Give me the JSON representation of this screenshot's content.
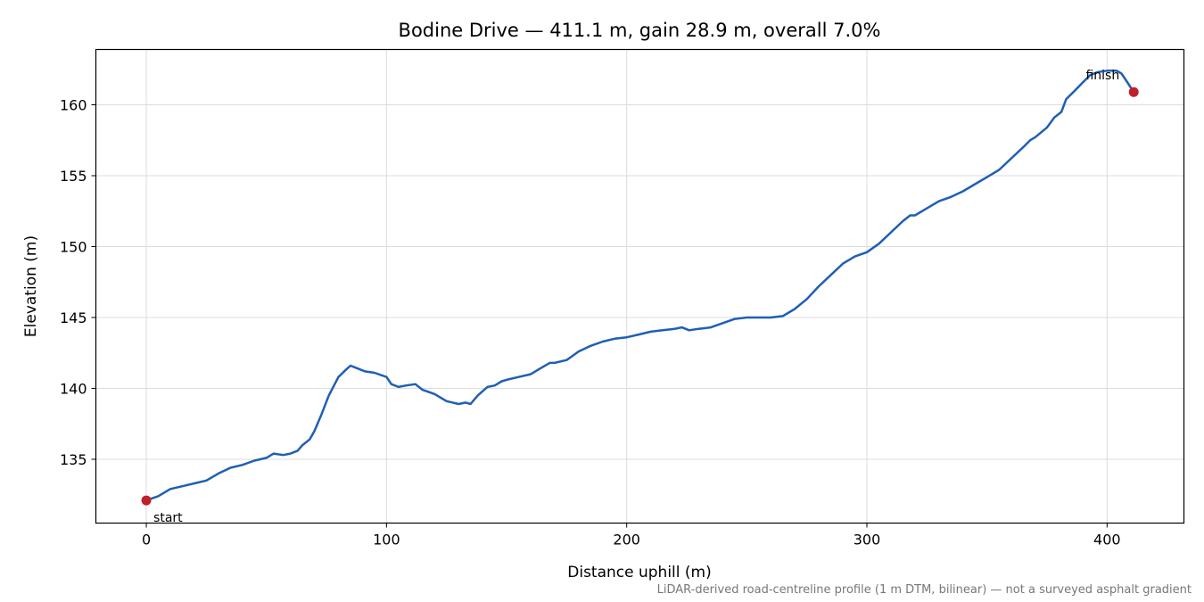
{
  "chart_data": {
    "type": "line",
    "title": "Bodine Drive — 411.1 m, gain 28.9 m, overall 7.0%",
    "xlabel": "Distance uphill (m)",
    "ylabel": "Elevation (m)",
    "xlim": [
      -21,
      432
    ],
    "ylim": [
      130.5,
      163.9
    ],
    "xticks": [
      0,
      100,
      200,
      300,
      400
    ],
    "yticks": [
      135,
      140,
      145,
      150,
      155,
      160
    ],
    "grid": true,
    "footnote": "LiDAR-derived road-centreline profile (1 m DTM, bilinear) — not a surveyed asphalt gradient",
    "series": [
      {
        "color": "#1f5fb4",
        "x": [
          0,
          5,
          10,
          15,
          20,
          25,
          30,
          35,
          40,
          45,
          50,
          53,
          57,
          60,
          63,
          65,
          68,
          70,
          73,
          76,
          80,
          83,
          85,
          88,
          91,
          95,
          100,
          102,
          105,
          108,
          112,
          115,
          120,
          125,
          130,
          133,
          135,
          138,
          142,
          145,
          148,
          150,
          155,
          160,
          165,
          168,
          170,
          175,
          180,
          185,
          190,
          195,
          200,
          205,
          210,
          215,
          220,
          223,
          226,
          230,
          235,
          240,
          245,
          250,
          255,
          260,
          265,
          270,
          275,
          280,
          285,
          290,
          295,
          300,
          305,
          310,
          315,
          318,
          320,
          325,
          330,
          335,
          340,
          345,
          350,
          355,
          360,
          365,
          368,
          370,
          375,
          378,
          381,
          383,
          386,
          390,
          393,
          396,
          400,
          404,
          406,
          408,
          411.1
        ],
        "y": [
          132.1,
          132.4,
          132.9,
          133.1,
          133.3,
          133.5,
          134.0,
          134.4,
          134.6,
          134.9,
          135.1,
          135.4,
          135.3,
          135.4,
          135.6,
          136.0,
          136.4,
          137.0,
          138.2,
          139.5,
          140.8,
          141.3,
          141.6,
          141.4,
          141.2,
          141.1,
          140.8,
          140.3,
          140.1,
          140.2,
          140.3,
          139.9,
          139.6,
          139.1,
          138.9,
          139.0,
          138.9,
          139.5,
          140.1,
          140.2,
          140.5,
          140.6,
          140.8,
          141.0,
          141.5,
          141.8,
          141.8,
          142.0,
          142.6,
          143.0,
          143.3,
          143.5,
          143.6,
          143.8,
          144.0,
          144.1,
          144.2,
          144.3,
          144.1,
          144.2,
          144.3,
          144.6,
          144.9,
          145.0,
          145.0,
          145.0,
          145.1,
          145.6,
          146.3,
          147.2,
          148.0,
          148.8,
          149.3,
          149.6,
          150.2,
          151.0,
          151.8,
          152.2,
          152.2,
          152.7,
          153.2,
          153.5,
          153.9,
          154.4,
          154.9,
          155.4,
          156.2,
          157.0,
          157.5,
          157.7,
          158.4,
          159.1,
          159.5,
          160.4,
          160.9,
          161.6,
          162.1,
          162.3,
          162.4,
          162.4,
          162.2,
          161.7,
          160.9
        ]
      }
    ],
    "markers": [
      {
        "label": "start",
        "x": 0,
        "y": 132.1,
        "color": "#c0202a"
      },
      {
        "label": "finish",
        "x": 411.1,
        "y": 160.9,
        "color": "#c0202a"
      }
    ]
  }
}
